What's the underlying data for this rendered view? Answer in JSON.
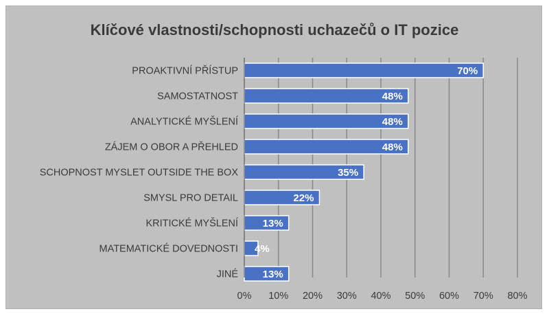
{
  "chart_data": {
    "type": "bar",
    "orientation": "horizontal",
    "title": "Klíčové vlastnosti/schopnosti uchazečů o IT pozice",
    "categories": [
      "PROAKTIVNÍ PŘÍSTUP",
      "SAMOSTATNOST",
      "ANALYTICKÉ MYŠLENÍ",
      "ZÁJEM O OBOR A PŘEHLED",
      "SCHOPNOST MYSLET OUTSIDE THE BOX",
      "SMYSL PRO DETAIL",
      "KRITICKÉ MYŠLENÍ",
      "MATEMATICKÉ DOVEDNOSTI",
      "JINÉ"
    ],
    "values": [
      70,
      48,
      48,
      48,
      35,
      22,
      13,
      4,
      13
    ],
    "data_labels": [
      "70%",
      "48%",
      "48%",
      "48%",
      "35%",
      "22%",
      "13%",
      "4%",
      "13%"
    ],
    "xlim": [
      0,
      80
    ],
    "x_ticks": [
      "0%",
      "10%",
      "20%",
      "30%",
      "40%",
      "50%",
      "60%",
      "70%",
      "80%"
    ],
    "bar_color": "#4a72c4",
    "grid": true,
    "legend": "none"
  }
}
